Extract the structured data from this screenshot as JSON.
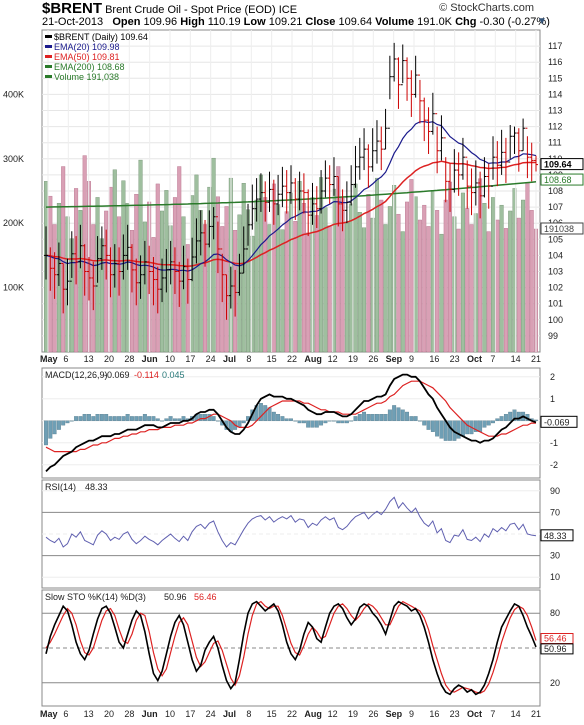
{
  "header": {
    "symbol": "$BRENT",
    "description": "Brent Crude Oil - Spot Price (EOD)",
    "exchange": "ICE",
    "source": "© StockCharts.com"
  },
  "quote": {
    "date": "21-Oct-2013",
    "open_label": "Open",
    "open": "109.96",
    "high_label": "High",
    "high": "110.19",
    "low_label": "Low",
    "low": "109.21",
    "close_label": "Close",
    "close": "109.64",
    "volume_label": "Volume",
    "volume": "191.0K",
    "chg_label": "Chg",
    "chg": "-0.30 (-0.27%)"
  },
  "colors": {
    "up_bar": "#000000",
    "down_bar": "#cc0000",
    "ema20": "#1a1a8c",
    "ema50": "#dd2222",
    "ema200": "#2a7a2a",
    "vol_up": "#9fbf9f",
    "vol_down": "#d9a0b5",
    "macd_line": "#000000",
    "signal_line": "#dd2222",
    "hist": "#6f9fb5",
    "rsi_line": "#6060b0",
    "rsi_fill": "#2a6a6a",
    "stok": "#000000",
    "stod": "#dd2222"
  },
  "chart_data": [
    {
      "type": "candlestick",
      "panel": "price",
      "legend": [
        {
          "key": "price",
          "text": "$BRENT (Daily) 109.64"
        },
        {
          "key": "ema20",
          "text": "EMA(20) 109.98"
        },
        {
          "key": "ema50",
          "text": "EMA(50) 109.81"
        },
        {
          "key": "ema200",
          "text": "EMA(200) 108.68"
        },
        {
          "key": "volume",
          "text": "Volume 191,038"
        }
      ],
      "ylim": [
        98,
        118
      ],
      "y_ticks": [
        99,
        100,
        101,
        102,
        103,
        104,
        105,
        106,
        107,
        108,
        109,
        110,
        111,
        112,
        113,
        114,
        115,
        116,
        117
      ],
      "price_tags": [
        "109.64",
        "108.68",
        "191038"
      ],
      "x_tick_labels": [
        "May",
        "6",
        "13",
        "20",
        "28",
        "Jun",
        "10",
        "17",
        "24",
        "Jul",
        "8",
        "15",
        "22",
        "Aug",
        "12",
        "19",
        "26",
        "Sep",
        "9",
        "16",
        "23",
        "Oct",
        "7",
        "14",
        "21"
      ],
      "close": [
        104.0,
        103.2,
        102.8,
        103.5,
        101.9,
        102.4,
        104.1,
        103.6,
        104.6,
        103.0,
        102.6,
        102.1,
        103.8,
        104.6,
        104.0,
        102.8,
        103.5,
        103.0,
        104.0,
        104.5,
        103.1,
        102.3,
        102.8,
        103.6,
        103.0,
        102.5,
        101.9,
        102.6,
        103.1,
        103.6,
        103.0,
        102.4,
        103.3,
        102.5,
        103.9,
        104.9,
        105.4,
        104.7,
        105.8,
        106.4,
        104.4,
        102.8,
        101.5,
        102.1,
        101.7,
        102.9,
        104.4,
        105.9,
        106.9,
        107.5,
        107.9,
        107.3,
        108.1,
        107.2,
        107.8,
        108.3,
        107.9,
        108.5,
        107.5,
        108.0,
        107.9,
        106.5,
        107.2,
        106.9,
        108.0,
        108.8,
        108.4,
        108.9,
        107.2,
        106.8,
        107.3,
        108.4,
        109.5,
        110.1,
        110.6,
        109.5,
        110.5,
        111.1,
        110.6,
        111.9,
        115.1,
        116.2,
        114.6,
        116.1,
        115.0,
        114.0,
        115.2,
        113.6,
        112.4,
        111.7,
        112.8,
        110.5,
        111.3,
        108.6,
        108.1,
        109.3,
        109.0,
        110.1,
        108.3,
        107.9,
        108.5,
        107.7,
        108.9,
        108.3,
        110.1,
        109.6,
        110.4,
        109.8,
        111.4,
        111.6,
        110.5,
        111.9,
        110.1,
        109.9,
        109.64
      ],
      "high": [
        105.8,
        104.5,
        104.2,
        104.8,
        103.5,
        103.8,
        105.5,
        105.2,
        105.9,
        104.7,
        103.9,
        103.6,
        105.2,
        105.8,
        105.6,
        104.5,
        104.7,
        104.5,
        105.3,
        105.9,
        104.7,
        103.8,
        104.0,
        104.9,
        104.6,
        103.9,
        103.3,
        103.8,
        104.4,
        104.9,
        104.5,
        103.6,
        104.6,
        103.8,
        105.1,
        106.3,
        106.8,
        106.2,
        106.8,
        107.0,
        106.1,
        104.1,
        102.8,
        103.3,
        103.1,
        104.1,
        105.8,
        107.2,
        108.4,
        108.8,
        109.1,
        108.6,
        109.2,
        108.7,
        109.0,
        109.5,
        109.3,
        109.6,
        108.8,
        109.2,
        109.1,
        108.1,
        108.5,
        108.3,
        109.3,
        109.9,
        109.6,
        110.1,
        108.9,
        108.1,
        108.6,
        109.6,
        110.8,
        111.3,
        111.9,
        110.9,
        111.9,
        112.4,
        112.0,
        113.1,
        116.4,
        117.2,
        116.3,
        117.1,
        116.3,
        115.5,
        116.4,
        114.9,
        113.8,
        113.2,
        114.1,
        112.0,
        112.7,
        110.1,
        109.7,
        110.6,
        110.4,
        111.3,
        109.9,
        109.4,
        109.9,
        109.2,
        110.1,
        109.7,
        111.4,
        111.1,
        111.8,
        111.3,
        112.1,
        112.0,
        111.9,
        112.5,
        111.4,
        111.0,
        110.19
      ],
      "low": [
        102.5,
        101.8,
        101.3,
        102.1,
        100.4,
        100.9,
        102.6,
        102.2,
        103.2,
        101.5,
        101.2,
        100.6,
        102.3,
        103.1,
        102.5,
        101.4,
        102.0,
        101.5,
        102.5,
        103.1,
        101.7,
        100.9,
        101.3,
        102.2,
        101.6,
        100.9,
        100.4,
        101.1,
        101.7,
        102.2,
        101.6,
        100.8,
        101.9,
        101.0,
        102.4,
        103.5,
        104.0,
        103.3,
        104.5,
        105.0,
        102.9,
        101.1,
        100.0,
        100.7,
        100.2,
        101.5,
        102.9,
        104.6,
        105.6,
        106.1,
        106.7,
        106.1,
        106.7,
        105.9,
        106.5,
        107.0,
        106.6,
        107.2,
        106.2,
        106.8,
        106.6,
        105.2,
        105.9,
        105.7,
        106.6,
        107.6,
        107.2,
        107.7,
        105.8,
        105.5,
        106.0,
        107.1,
        108.2,
        108.7,
        109.3,
        108.2,
        109.2,
        109.7,
        109.3,
        110.6,
        113.7,
        114.8,
        113.1,
        114.7,
        113.6,
        112.6,
        113.8,
        112.2,
        111.1,
        110.3,
        111.5,
        109.1,
        109.9,
        107.3,
        106.7,
        107.9,
        107.7,
        108.7,
        106.9,
        106.5,
        107.1,
        106.3,
        107.6,
        106.9,
        108.7,
        108.3,
        109.0,
        108.5,
        110.0,
        110.3,
        109.2,
        110.5,
        108.8,
        108.6,
        109.21
      ],
      "volume_k": [
        265,
        242,
        198,
        231,
        288,
        210,
        176,
        254,
        220,
        305,
        265,
        198,
        240,
        176,
        219,
        256,
        283,
        210,
        266,
        231,
        189,
        245,
        298,
        202,
        233,
        178,
        261,
        219,
        251,
        196,
        240,
        288,
        210,
        167,
        243,
        275,
        220,
        198,
        256,
        301,
        241,
        195,
        226,
        270,
        189,
        213,
        262,
        221,
        180,
        236,
        275,
        240,
        198,
        261,
        229,
        190,
        218,
        247,
        203,
        265,
        231,
        185,
        240,
        212,
        271,
        224,
        196,
        253,
        288,
        239,
        202,
        230,
        261,
        217,
        193,
        245,
        208,
        270,
        236,
        198,
        226,
        259,
        214,
        187,
        233,
        268,
        241,
        205,
        228,
        195,
        251,
        220,
        183,
        236,
        264,
        210,
        191,
        247,
        223,
        198,
        215,
        269,
        231,
        187,
        240,
        205,
        228,
        192,
        219,
        254,
        208,
        236,
        263,
        220,
        191
      ]
    },
    {
      "type": "line",
      "panel": "macd",
      "label": "MACD(12,26,9)",
      "values": [
        "-0.069",
        "-0.114",
        "0.045"
      ],
      "y_ticks": [
        2,
        1,
        0,
        -1,
        -2
      ],
      "ylim": [
        -2.6,
        2.4
      ],
      "tag": "-0.069",
      "macd": [
        -2.3,
        -2.1,
        -2.0,
        -1.8,
        -1.6,
        -1.5,
        -1.4,
        -1.2,
        -1.1,
        -1.0,
        -0.9,
        -0.9,
        -0.8,
        -0.7,
        -0.7,
        -0.7,
        -0.6,
        -0.6,
        -0.5,
        -0.4,
        -0.4,
        -0.4,
        -0.3,
        -0.2,
        -0.2,
        -0.2,
        -0.3,
        -0.3,
        -0.2,
        -0.1,
        -0.1,
        -0.1,
        0.0,
        0.0,
        0.1,
        0.3,
        0.4,
        0.4,
        0.5,
        0.5,
        0.3,
        0.0,
        -0.3,
        -0.5,
        -0.6,
        -0.6,
        -0.4,
        -0.1,
        0.3,
        0.7,
        1.0,
        1.1,
        1.2,
        1.1,
        1.1,
        1.1,
        1.0,
        1.0,
        0.9,
        0.8,
        0.7,
        0.5,
        0.4,
        0.3,
        0.3,
        0.4,
        0.4,
        0.4,
        0.3,
        0.2,
        0.2,
        0.3,
        0.5,
        0.7,
        0.9,
        0.9,
        1.0,
        1.1,
        1.1,
        1.2,
        1.6,
        1.9,
        2.0,
        2.1,
        2.1,
        2.0,
        2.0,
        1.8,
        1.5,
        1.2,
        1.0,
        0.6,
        0.3,
        0.0,
        -0.3,
        -0.5,
        -0.6,
        -0.7,
        -0.8,
        -0.9,
        -0.9,
        -1.0,
        -0.9,
        -0.9,
        -0.8,
        -0.6,
        -0.4,
        -0.3,
        -0.1,
        0.1,
        0.1,
        0.2,
        0.1,
        0.0,
        -0.07
      ],
      "signal": [
        -1.2,
        -1.3,
        -1.4,
        -1.4,
        -1.4,
        -1.4,
        -1.4,
        -1.4,
        -1.3,
        -1.3,
        -1.2,
        -1.1,
        -1.1,
        -1.0,
        -1.0,
        -0.9,
        -0.8,
        -0.8,
        -0.7,
        -0.7,
        -0.6,
        -0.6,
        -0.5,
        -0.5,
        -0.4,
        -0.4,
        -0.4,
        -0.3,
        -0.3,
        -0.3,
        -0.2,
        -0.2,
        -0.2,
        -0.1,
        -0.1,
        0.0,
        0.1,
        0.1,
        0.2,
        0.3,
        0.3,
        0.2,
        0.1,
        0.0,
        -0.2,
        -0.3,
        -0.3,
        -0.3,
        -0.2,
        0.0,
        0.2,
        0.4,
        0.6,
        0.7,
        0.8,
        0.9,
        0.9,
        0.9,
        0.9,
        0.9,
        0.8,
        0.8,
        0.7,
        0.6,
        0.5,
        0.5,
        0.4,
        0.4,
        0.4,
        0.3,
        0.3,
        0.3,
        0.3,
        0.4,
        0.5,
        0.6,
        0.7,
        0.8,
        0.8,
        0.9,
        1.1,
        1.2,
        1.4,
        1.6,
        1.7,
        1.8,
        1.8,
        1.8,
        1.7,
        1.6,
        1.5,
        1.3,
        1.1,
        0.9,
        0.6,
        0.4,
        0.2,
        0.0,
        -0.2,
        -0.3,
        -0.4,
        -0.5,
        -0.6,
        -0.7,
        -0.7,
        -0.7,
        -0.6,
        -0.6,
        -0.5,
        -0.4,
        -0.3,
        -0.2,
        -0.2,
        -0.1,
        -0.11
      ]
    },
    {
      "type": "line",
      "panel": "rsi",
      "label": "RSI(14)",
      "value": "48.33",
      "y_ticks": [
        90,
        70,
        50,
        30,
        10
      ],
      "ylim": [
        0,
        100
      ],
      "tag": "48.33",
      "values": [
        47,
        44,
        42,
        46,
        38,
        41,
        50,
        47,
        52,
        44,
        42,
        40,
        49,
        53,
        50,
        44,
        47,
        45,
        50,
        52,
        45,
        41,
        44,
        48,
        45,
        43,
        40,
        44,
        47,
        50,
        46,
        43,
        48,
        44,
        52,
        57,
        59,
        55,
        60,
        62,
        52,
        44,
        38,
        42,
        40,
        47,
        54,
        60,
        64,
        66,
        67,
        63,
        66,
        61,
        64,
        66,
        64,
        67,
        61,
        64,
        63,
        56,
        60,
        58,
        63,
        66,
        63,
        65,
        56,
        54,
        57,
        62,
        66,
        68,
        70,
        64,
        68,
        71,
        68,
        73,
        80,
        84,
        74,
        79,
        74,
        70,
        74,
        66,
        60,
        57,
        62,
        51,
        55,
        44,
        42,
        49,
        48,
        54,
        45,
        44,
        47,
        43,
        50,
        47,
        55,
        52,
        56,
        53,
        59,
        60,
        54,
        59,
        50,
        49,
        48.33
      ]
    },
    {
      "type": "line",
      "panel": "stochastic",
      "label": "Slow STO %K(14) %D(3)",
      "values": [
        "50.96",
        "56.46"
      ],
      "y_ticks": [
        80,
        50,
        20
      ],
      "ylim": [
        0,
        100
      ],
      "tags": [
        "56.46",
        "50.96"
      ],
      "k": [
        45,
        60,
        70,
        78,
        86,
        82,
        70,
        55,
        45,
        40,
        48,
        62,
        75,
        84,
        86,
        80,
        68,
        55,
        50,
        62,
        74,
        82,
        78,
        64,
        45,
        28,
        22,
        30,
        45,
        60,
        72,
        78,
        70,
        55,
        40,
        30,
        35,
        48,
        55,
        60,
        50,
        35,
        22,
        15,
        20,
        40,
        62,
        80,
        88,
        90,
        86,
        82,
        85,
        88,
        82,
        70,
        55,
        45,
        40,
        48,
        62,
        72,
        68,
        58,
        55,
        68,
        80,
        86,
        88,
        84,
        76,
        70,
        75,
        85,
        88,
        86,
        80,
        76,
        70,
        62,
        74,
        86,
        90,
        88,
        86,
        82,
        84,
        78,
        68,
        55,
        40,
        28,
        18,
        12,
        10,
        15,
        18,
        16,
        12,
        14,
        10,
        12,
        18,
        28,
        40,
        55,
        68,
        75,
        82,
        88,
        86,
        78,
        68,
        60,
        50.96
      ],
      "d": [
        50,
        55,
        62,
        70,
        78,
        84,
        80,
        70,
        56,
        46,
        44,
        50,
        62,
        74,
        82,
        84,
        78,
        66,
        56,
        54,
        62,
        74,
        80,
        78,
        64,
        46,
        32,
        26,
        32,
        46,
        60,
        72,
        76,
        70,
        56,
        42,
        34,
        38,
        46,
        54,
        56,
        48,
        36,
        24,
        18,
        26,
        42,
        62,
        78,
        88,
        90,
        86,
        84,
        86,
        86,
        78,
        66,
        54,
        46,
        44,
        52,
        62,
        68,
        64,
        58,
        60,
        70,
        80,
        86,
        88,
        84,
        78,
        74,
        78,
        84,
        88,
        86,
        82,
        76,
        70,
        70,
        78,
        86,
        90,
        88,
        86,
        84,
        82,
        76,
        66,
        52,
        40,
        28,
        18,
        13,
        12,
        14,
        16,
        15,
        14,
        12,
        11,
        13,
        19,
        29,
        41,
        55,
        66,
        76,
        83,
        86,
        84,
        78,
        68,
        56.46
      ]
    }
  ]
}
